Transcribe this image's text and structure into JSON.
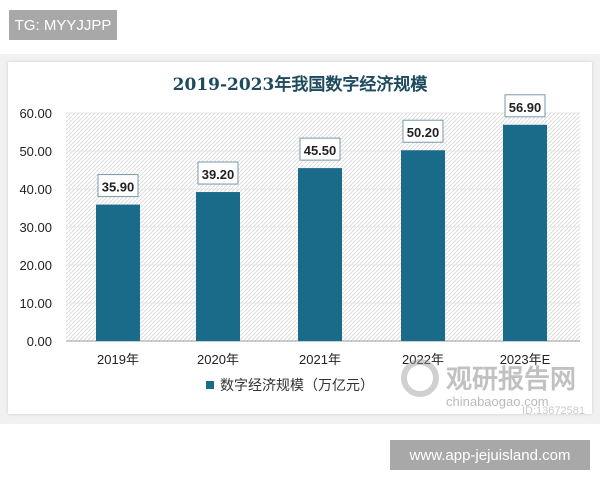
{
  "watermark_top": "TG: MYYJJPP",
  "watermark_bottom": "www.app-jejuisland.com",
  "logo": {
    "name": "观研报告网",
    "sub": "chinabaogao.com",
    "id": "ID:13672581"
  },
  "chart_data": {
    "type": "bar",
    "title": "2019-2023年我国数字经济规模",
    "categories": [
      "2019年",
      "2020年",
      "2021年",
      "2022年",
      "2023年E"
    ],
    "series": [
      {
        "name": "数字经济规模（万亿元）",
        "values": [
          35.9,
          39.2,
          45.5,
          50.2,
          56.9
        ],
        "color": "#1a6a8a"
      }
    ],
    "value_labels": [
      "35.90",
      "39.20",
      "45.50",
      "50.20",
      "56.90"
    ],
    "yticks": [
      "0.00",
      "10.00",
      "20.00",
      "30.00",
      "40.00",
      "50.00",
      "60.00"
    ],
    "ylim": [
      0,
      60
    ],
    "grid": true,
    "legend": "bottom"
  }
}
